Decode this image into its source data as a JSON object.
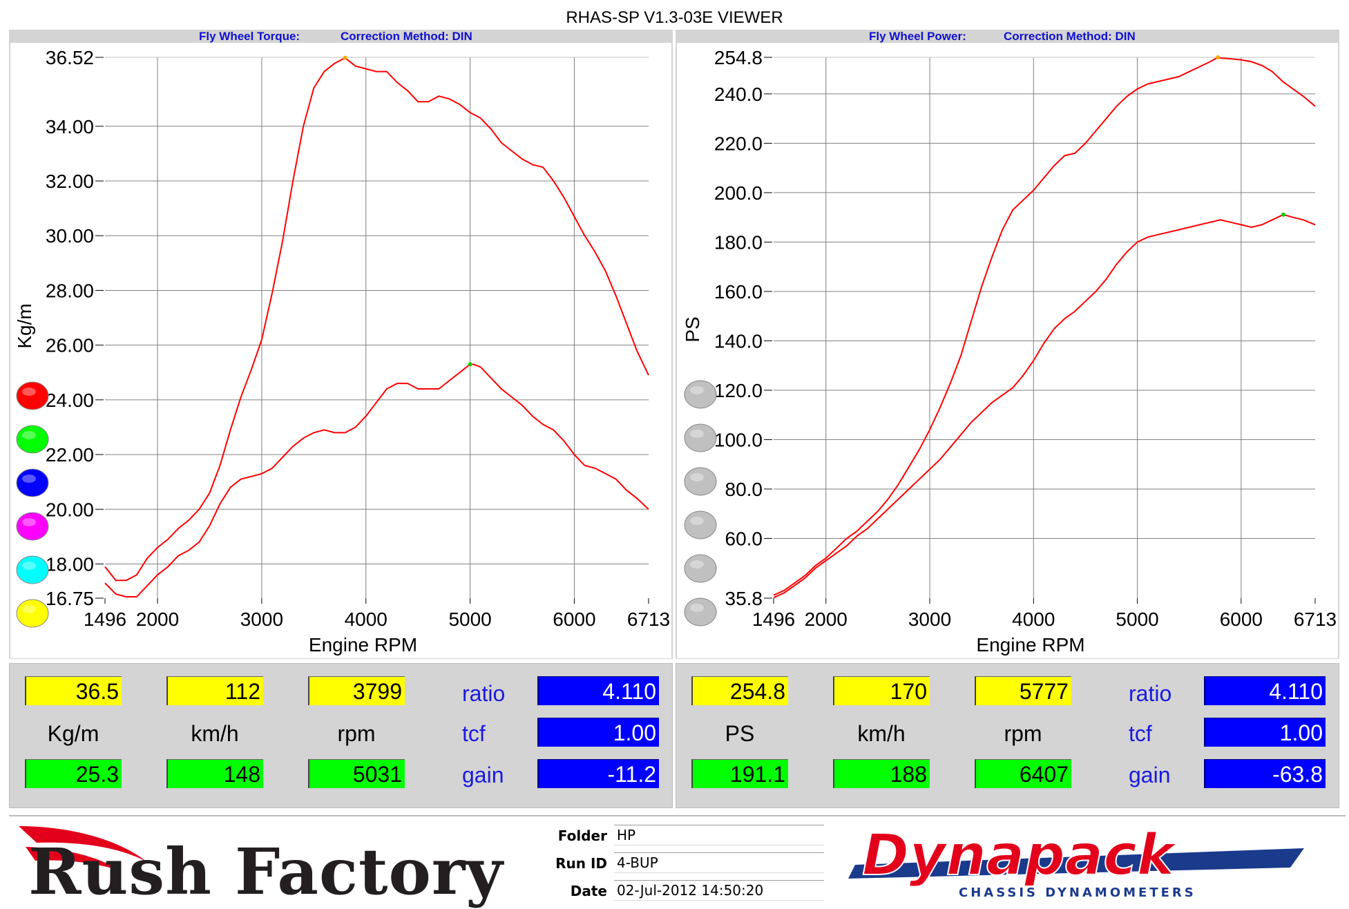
{
  "window": {
    "title": "RHAS-SP V1.3-03E VIEWER"
  },
  "torque_panel": {
    "header": "Fly Wheel Torque:",
    "correction": "Correction Method: DIN"
  },
  "power_panel": {
    "header": "Fly Wheel Power:",
    "correction": "Correction Method: DIN"
  },
  "chart_data": [
    {
      "type": "line",
      "title": "",
      "xlabel": "Engine RPM",
      "ylabel": "Kg/m",
      "xlim": [
        1496,
        6713
      ],
      "ylim": [
        16.75,
        36.52
      ],
      "x_ticks": [
        "1496",
        "2000",
        "3000",
        "4000",
        "5000",
        "6000",
        "6713"
      ],
      "y_ticks": [
        "36.52",
        "34.00",
        "32.00",
        "30.00",
        "28.00",
        "26.00",
        "24.00",
        "22.00",
        "20.00",
        "18.00",
        "16.75"
      ],
      "grid": true,
      "series": [
        {
          "color": "#ff0000",
          "x": [
            1496,
            1600,
            1700,
            1800,
            1900,
            2000,
            2100,
            2200,
            2300,
            2400,
            2500,
            2600,
            2700,
            2800,
            2900,
            3000,
            3100,
            3200,
            3300,
            3400,
            3500,
            3600,
            3700,
            3800,
            3900,
            4000,
            4100,
            4200,
            4300,
            4400,
            4500,
            4600,
            4700,
            4800,
            4900,
            5000,
            5100,
            5200,
            5300,
            5400,
            5500,
            5600,
            5700,
            5800,
            5900,
            6000,
            6100,
            6200,
            6300,
            6400,
            6500,
            6600,
            6713
          ],
          "values": [
            17.9,
            17.4,
            17.4,
            17.6,
            18.2,
            18.6,
            18.9,
            19.3,
            19.6,
            20.0,
            20.6,
            21.6,
            22.9,
            24.1,
            25.1,
            26.2,
            27.9,
            29.8,
            32.0,
            34.0,
            35.4,
            36.0,
            36.3,
            36.5,
            36.2,
            36.1,
            36.0,
            36.0,
            35.6,
            35.3,
            34.9,
            34.9,
            35.1,
            35.0,
            34.8,
            34.5,
            34.3,
            33.9,
            33.4,
            33.1,
            32.8,
            32.6,
            32.5,
            32.0,
            31.4,
            30.7,
            30.0,
            29.4,
            28.7,
            27.8,
            26.8,
            25.8,
            24.9
          ]
        },
        {
          "color": "#ff0000",
          "x": [
            1496,
            1600,
            1700,
            1800,
            1900,
            2000,
            2100,
            2200,
            2300,
            2400,
            2500,
            2600,
            2700,
            2800,
            2900,
            3000,
            3100,
            3200,
            3300,
            3400,
            3500,
            3600,
            3700,
            3800,
            3900,
            4000,
            4100,
            4200,
            4300,
            4400,
            4500,
            4600,
            4700,
            4800,
            4900,
            5000,
            5031,
            5100,
            5200,
            5300,
            5400,
            5500,
            5600,
            5700,
            5800,
            5900,
            6000,
            6100,
            6200,
            6300,
            6400,
            6500,
            6600,
            6713
          ],
          "values": [
            17.3,
            16.9,
            16.8,
            16.8,
            17.2,
            17.6,
            17.9,
            18.3,
            18.5,
            18.8,
            19.4,
            20.2,
            20.8,
            21.1,
            21.2,
            21.3,
            21.5,
            21.9,
            22.3,
            22.6,
            22.8,
            22.9,
            22.8,
            22.8,
            23.0,
            23.4,
            23.9,
            24.4,
            24.6,
            24.6,
            24.4,
            24.4,
            24.4,
            24.7,
            25.0,
            25.3,
            25.3,
            25.2,
            24.8,
            24.4,
            24.1,
            23.8,
            23.4,
            23.1,
            22.9,
            22.5,
            22.0,
            21.6,
            21.5,
            21.3,
            21.1,
            20.7,
            20.4,
            20.0
          ]
        }
      ]
    },
    {
      "type": "line",
      "title": "",
      "xlabel": "Engine RPM",
      "ylabel": "PS",
      "xlim": [
        1496,
        6713
      ],
      "ylim": [
        35.8,
        254.8
      ],
      "x_ticks": [
        "1496",
        "2000",
        "3000",
        "4000",
        "5000",
        "6000",
        "6713"
      ],
      "y_ticks": [
        "254.8",
        "240.0",
        "220.0",
        "200.0",
        "180.0",
        "160.0",
        "140.0",
        "120.0",
        "100.0",
        "80.0",
        "60.0",
        "35.8"
      ],
      "grid": true,
      "series": [
        {
          "color": "#ff0000",
          "x": [
            1496,
            1600,
            1700,
            1800,
            1900,
            2000,
            2100,
            2200,
            2300,
            2400,
            2500,
            2600,
            2700,
            2800,
            2900,
            3000,
            3100,
            3200,
            3300,
            3400,
            3500,
            3600,
            3700,
            3800,
            3900,
            4000,
            4100,
            4200,
            4300,
            4400,
            4500,
            4600,
            4700,
            4800,
            4900,
            5000,
            5100,
            5200,
            5300,
            5400,
            5500,
            5600,
            5700,
            5777,
            5800,
            5900,
            6000,
            6100,
            6200,
            6300,
            6400,
            6500,
            6600,
            6713
          ],
          "values": [
            37,
            39,
            42,
            45,
            49,
            52,
            56,
            60,
            63,
            67,
            71,
            76,
            82,
            89,
            96,
            104,
            113,
            123,
            134,
            148,
            162,
            174,
            185,
            193,
            197,
            201,
            206,
            211,
            215,
            216,
            220,
            225,
            230,
            235,
            239,
            242,
            244,
            245,
            246,
            247,
            249,
            251,
            253,
            254.8,
            254.5,
            254.2,
            253.8,
            253,
            251.5,
            249,
            245,
            242,
            239,
            235
          ]
        },
        {
          "color": "#ff0000",
          "x": [
            1496,
            1600,
            1700,
            1800,
            1900,
            2000,
            2100,
            2200,
            2300,
            2400,
            2500,
            2600,
            2700,
            2800,
            2900,
            3000,
            3100,
            3200,
            3300,
            3400,
            3500,
            3600,
            3700,
            3800,
            3900,
            4000,
            4100,
            4200,
            4300,
            4400,
            4500,
            4600,
            4700,
            4800,
            4900,
            5000,
            5100,
            5200,
            5300,
            5400,
            5500,
            5600,
            5700,
            5800,
            5900,
            6000,
            6100,
            6200,
            6300,
            6407,
            6500,
            6600,
            6713
          ],
          "values": [
            36,
            38,
            41,
            44,
            48,
            51,
            54,
            57,
            61,
            64,
            68,
            72,
            76,
            80,
            84,
            88,
            92,
            97,
            102,
            107,
            111,
            115,
            118,
            121,
            126,
            132,
            139,
            145,
            149,
            152,
            156,
            160,
            165,
            171,
            176,
            180,
            182,
            183,
            184,
            185,
            186,
            187,
            188,
            189,
            188,
            187,
            186,
            187,
            189,
            191.1,
            190,
            189,
            187
          ]
        }
      ]
    }
  ],
  "swatches_left": [
    "#ff0000",
    "#00ff00",
    "#0000ff",
    "#ff00ff",
    "#00ffff",
    "#ffff00"
  ],
  "swatches_right": [
    "#c0c0c0",
    "#c0c0c0",
    "#c0c0c0",
    "#c0c0c0",
    "#c0c0c0",
    "#c0c0c0"
  ],
  "torque_readout": {
    "yellow": [
      "36.5",
      "112",
      "3799"
    ],
    "units": [
      "Kg/m",
      "km/h",
      "rpm"
    ],
    "green": [
      "25.3",
      "148",
      "5031"
    ],
    "labels": [
      "ratio",
      "tcf",
      "gain"
    ],
    "blue": [
      "4.110",
      "1.00",
      "-11.2"
    ]
  },
  "power_readout": {
    "yellow": [
      "254.8",
      "170",
      "5777"
    ],
    "units": [
      "PS",
      "km/h",
      "rpm"
    ],
    "green": [
      "191.1",
      "188",
      "6407"
    ],
    "labels": [
      "ratio",
      "tcf",
      "gain"
    ],
    "blue": [
      "4.110",
      "1.00",
      "-63.8"
    ]
  },
  "footer": {
    "brand_left": "Rush Factory",
    "folder_label": "Folder",
    "folder_value": "HP",
    "runid_label": "Run ID",
    "runid_value": "4-BUP",
    "date_label": "Date",
    "date_value": "02-Jul-2012  14:50:20",
    "brand_right": "Dynapack",
    "brand_right_sub": "CHASSIS  DYNAMOMETERS"
  }
}
